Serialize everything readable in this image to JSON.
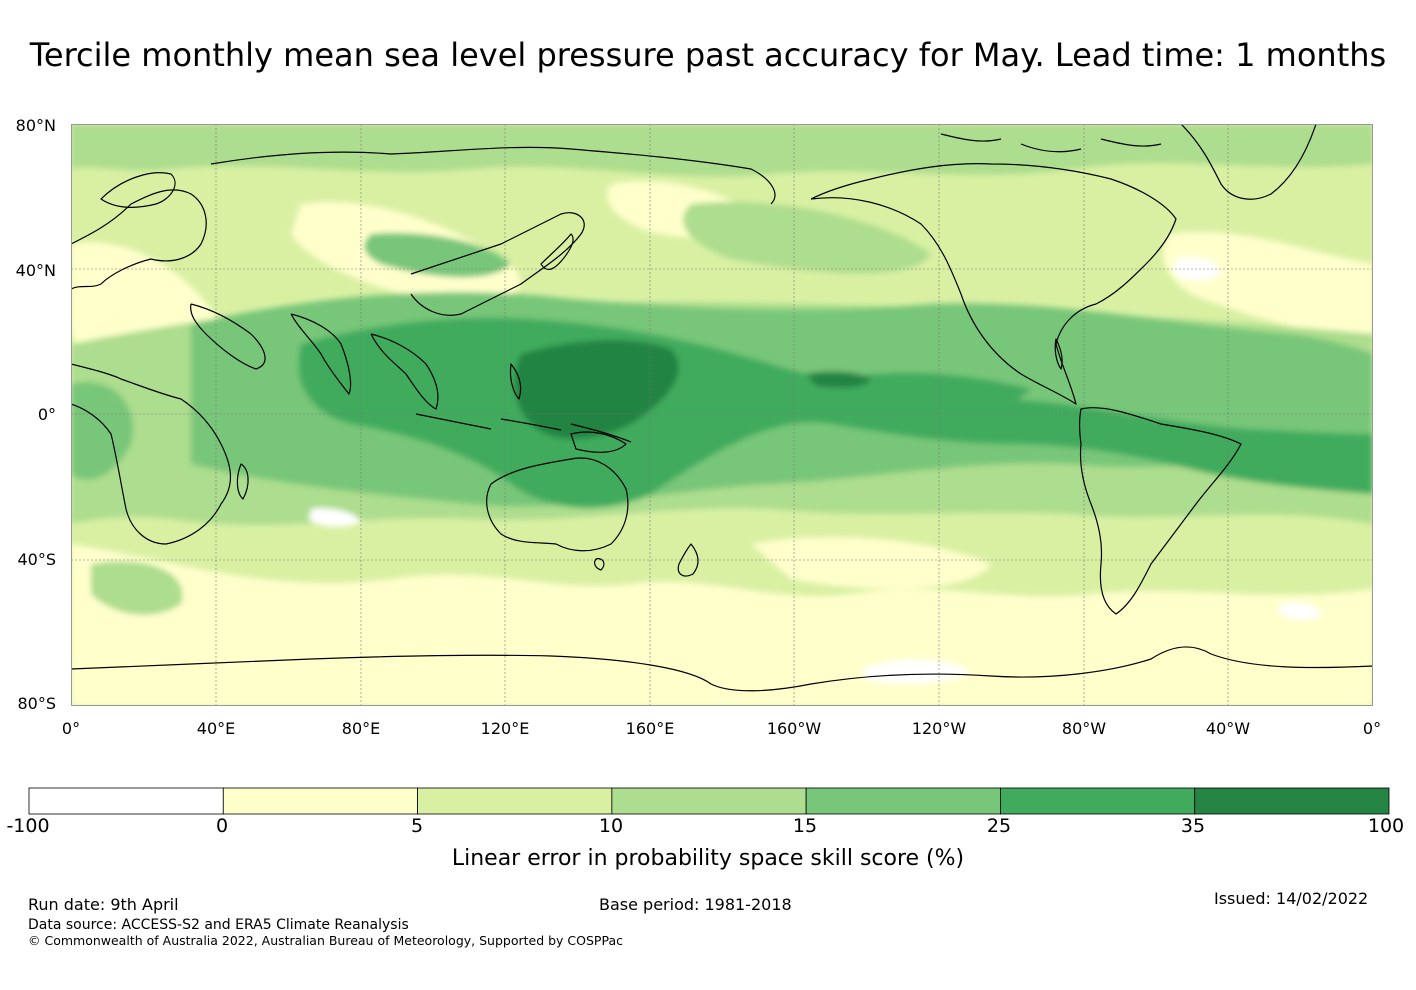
{
  "title": "Tercile monthly mean sea level pressure past accuracy for May. Lead time: 1 months",
  "lat_labels": [
    "80°N",
    "40°N",
    "0°",
    "40°S",
    "80°S"
  ],
  "lon_labels": [
    "0°",
    "40°E",
    "80°E",
    "120°E",
    "160°E",
    "160°W",
    "120°W",
    "80°W",
    "40°W",
    "0°"
  ],
  "colorbar": {
    "title": "Linear error in probability space skill score (%)",
    "ticks": [
      "-100",
      "0",
      "5",
      "10",
      "15",
      "25",
      "35",
      "100"
    ],
    "colors": [
      "#ffffff",
      "#ffffcc",
      "#d9f0a3",
      "#addd8e",
      "#78c679",
      "#41ab5d",
      "#238443"
    ]
  },
  "footer": {
    "run_date": "Run date: 9th April",
    "base_period": "Base period: 1981-2018",
    "issued": "Issued: 14/02/2022",
    "data_source": "Data source: ACCESS-S2 and ERA5 Climate Reanalysis",
    "copyright": "© Commonwealth of Australia 2022, Australian Bureau of Meteorology, Supported by COSPPac"
  }
}
